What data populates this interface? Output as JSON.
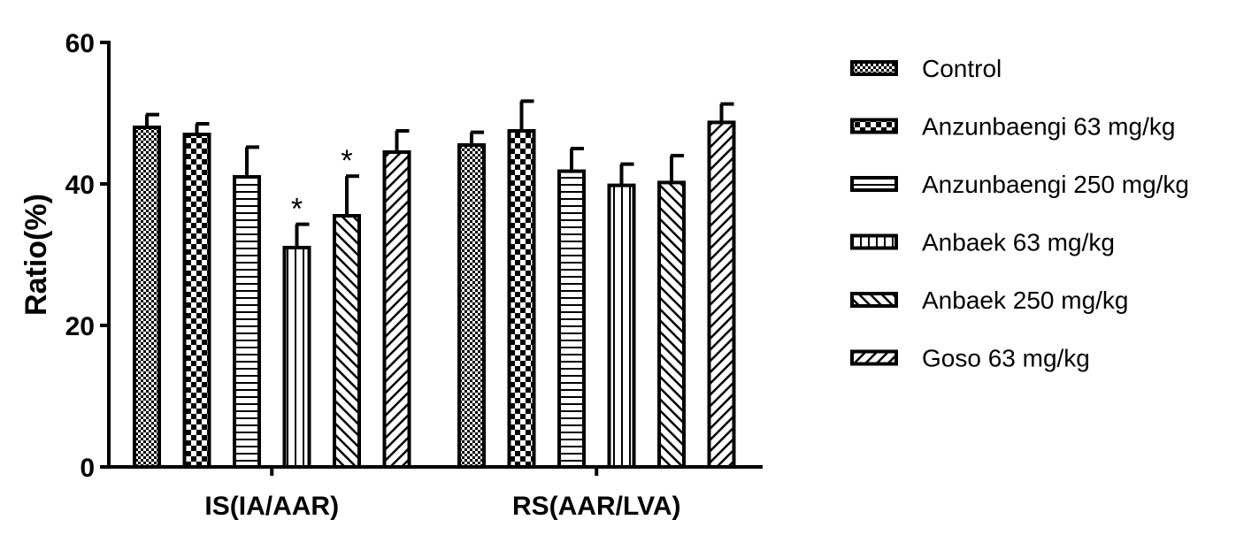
{
  "chart_data": {
    "type": "bar",
    "title": "",
    "xlabel": "",
    "ylabel": "Ratio(%)",
    "ylim": [
      0,
      60
    ],
    "yticks": [
      0,
      20,
      40,
      60
    ],
    "categories": [
      "IS(IA/AAR)",
      "RS(AAR/LVA)"
    ],
    "legend_position": "right",
    "grid": false,
    "series": [
      {
        "name": "Control",
        "pattern": "checker-fine",
        "values": [
          48,
          45.5
        ],
        "errors": [
          1.8,
          1.8
        ]
      },
      {
        "name": "Anzunbaengi 63 mg/kg",
        "pattern": "checker-coarse",
        "values": [
          47,
          47.5
        ],
        "errors": [
          1.5,
          4.2
        ]
      },
      {
        "name": "Anzunbaengi 250 mg/kg",
        "pattern": "horizontal-lines",
        "values": [
          41,
          41.8
        ],
        "errors": [
          4.2,
          3.2
        ]
      },
      {
        "name": "Anbaek 63 mg/kg",
        "pattern": "vertical-lines",
        "values": [
          31,
          39.8
        ],
        "errors": [
          3.3,
          3.0
        ],
        "significance": [
          "*",
          ""
        ]
      },
      {
        "name": "Anbaek 250 mg/kg",
        "pattern": "diagonal-up",
        "values": [
          35.5,
          40.2
        ],
        "errors": [
          5.6,
          3.8
        ],
        "significance": [
          "*",
          ""
        ]
      },
      {
        "name": "Goso 63 mg/kg",
        "pattern": "diagonal-down",
        "values": [
          44.5,
          48.7
        ],
        "errors": [
          3.0,
          2.6
        ]
      }
    ]
  }
}
